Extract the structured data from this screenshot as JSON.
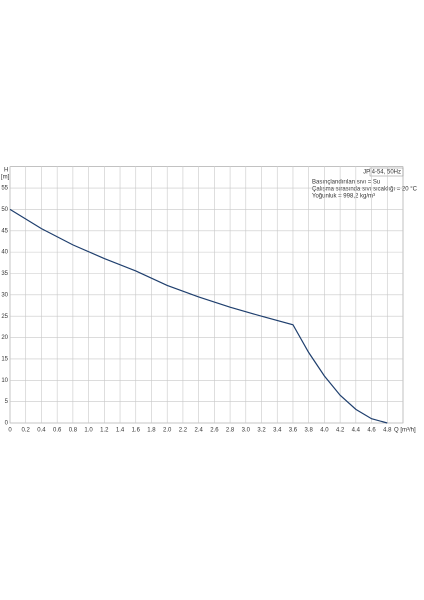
{
  "chart_data": {
    "type": "line",
    "y_label_top": "H",
    "y_label_unit": "[m]",
    "x_label": "Q [m³/h]",
    "legend_box": "JP 4-54, 50Hz",
    "notes": [
      "Basınçlandırılan sıvı = Su",
      "Çalışma sırasında sıvı sıcaklığı = 20 °C",
      "Yoğunluk = 998,2 kg/m³"
    ],
    "xlim": [
      0,
      5
    ],
    "ylim": [
      0,
      60
    ],
    "xticks": [
      0,
      0.2,
      0.4,
      0.6,
      0.8,
      {
        "value": 1,
        "label": "1.0"
      },
      1.2,
      1.4,
      1.6,
      1.8,
      {
        "value": 2,
        "label": "2.0"
      },
      2.2,
      2.4,
      2.6,
      2.8,
      {
        "value": 3,
        "label": "3.0"
      },
      3.2,
      3.4,
      3.6,
      3.8,
      {
        "value": 4,
        "label": "4.0"
      },
      4.2,
      4.4,
      4.6,
      4.8
    ],
    "yticks": [
      0,
      5,
      10,
      15,
      20,
      25,
      30,
      35,
      40,
      45,
      50,
      55
    ],
    "grid": true,
    "series": [
      {
        "color": "#1f3f6e",
        "x": [
          0,
          0.4,
          0.8,
          1.2,
          1.6,
          2.0,
          2.4,
          2.8,
          3.2,
          3.6,
          3.8,
          4.0,
          4.2,
          4.4,
          4.6,
          4.8
        ],
        "values": [
          50,
          45.5,
          41.7,
          38.5,
          35.6,
          32.2,
          29.5,
          27.1,
          25,
          23,
          16.5,
          11,
          6.5,
          3.2,
          1,
          0
        ]
      }
    ]
  }
}
